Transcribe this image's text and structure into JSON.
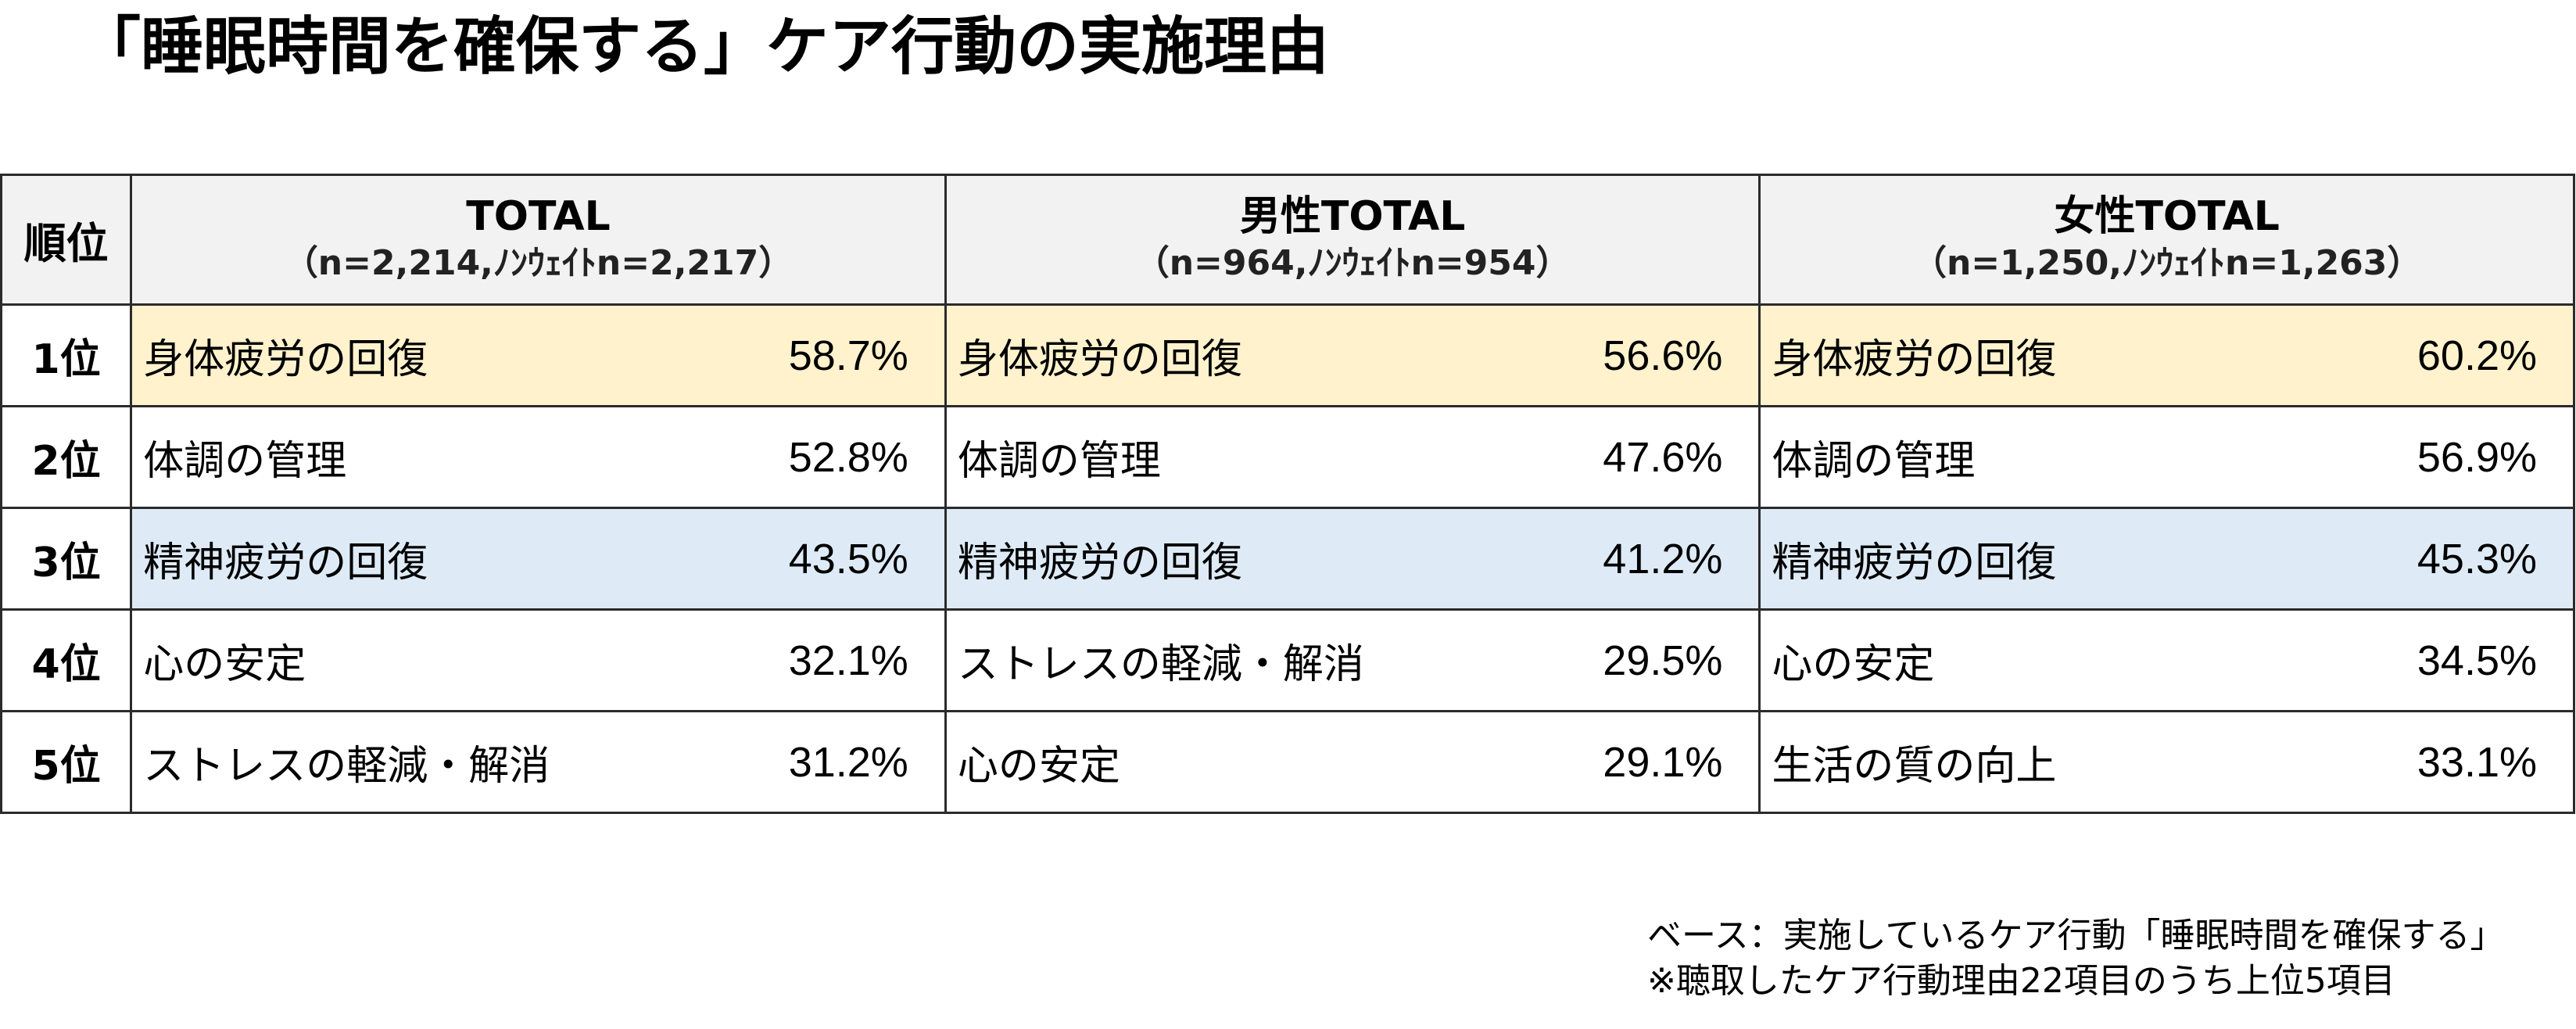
{
  "title": "「睡眠時間を確保する」ケア行動の実施理由",
  "table": {
    "rank_header": "順位",
    "segments": [
      {
        "title": "TOTAL",
        "sample": "（n=2,214,ﾉﾝｳｪｲﾄn=2,217）"
      },
      {
        "title": "男性TOTAL",
        "sample": "（n=964,ﾉﾝｳｪｲﾄn=954）"
      },
      {
        "title": "女性TOTAL",
        "sample": "（n=1,250,ﾉﾝｳｪｲﾄn=1,263）"
      }
    ],
    "rows": [
      {
        "rank": "1位",
        "highlight": "yellow",
        "cells": [
          {
            "label": "身体疲労の回復",
            "pct": "58.7%"
          },
          {
            "label": "身体疲労の回復",
            "pct": "56.6%"
          },
          {
            "label": "身体疲労の回復",
            "pct": "60.2%"
          }
        ]
      },
      {
        "rank": "2位",
        "highlight": "none",
        "cells": [
          {
            "label": "体調の管理",
            "pct": "52.8%"
          },
          {
            "label": "体調の管理",
            "pct": "47.6%"
          },
          {
            "label": "体調の管理",
            "pct": "56.9%"
          }
        ]
      },
      {
        "rank": "3位",
        "highlight": "blue",
        "cells": [
          {
            "label": "精神疲労の回復",
            "pct": "43.5%"
          },
          {
            "label": "精神疲労の回復",
            "pct": "41.2%"
          },
          {
            "label": "精神疲労の回復",
            "pct": "45.3%"
          }
        ]
      },
      {
        "rank": "4位",
        "highlight": "none",
        "cells": [
          {
            "label": "心の安定",
            "pct": "32.1%"
          },
          {
            "label": "ストレスの軽減・解消",
            "pct": "29.5%"
          },
          {
            "label": "心の安定",
            "pct": "34.5%"
          }
        ]
      },
      {
        "rank": "5位",
        "highlight": "none",
        "cells": [
          {
            "label": "ストレスの軽減・解消",
            "pct": "31.2%"
          },
          {
            "label": "心の安定",
            "pct": "29.1%"
          },
          {
            "label": "生活の質の向上",
            "pct": "33.1%"
          }
        ]
      }
    ]
  },
  "footnotes": {
    "base": "ベース：実施しているケア行動「睡眠時間を確保する」",
    "note": "※聴取したケア行動理由22項目のうち上位5項目"
  },
  "colors": {
    "highlight_yellow": "#fff2cc",
    "highlight_blue": "#deebf7",
    "header_background": "#f2f2f2",
    "border": "#2b2b2b"
  }
}
